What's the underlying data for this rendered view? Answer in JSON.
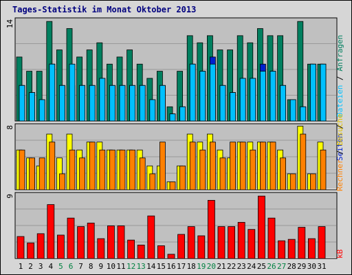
{
  "title": "Tages-Statistik im Monat Oktober 2013",
  "colors": {
    "anfragen": "#007f5f",
    "dateien": "#00c0ff",
    "seiten": "#0020d0",
    "besuche": "#ffff00",
    "rechner": "#ff8000",
    "kb": "#ff0000",
    "weekend": "#008040",
    "weekday": "#000000",
    "panel": "#c0c0c0",
    "grid": "#999999"
  },
  "legend": {
    "anfragen": "Anfragen",
    "dateien": "Dateien",
    "seiten": "Seiten",
    "besuche": "Besuche",
    "rechner": "Rechner",
    "kb": "kB",
    "sep": "/"
  },
  "chart_data": [
    {
      "type": "bar",
      "panel": "top",
      "y_max_label": "14",
      "ylim": [
        0,
        14.5
      ],
      "x": [
        "1",
        "2",
        "3",
        "4",
        "5",
        "6",
        "7",
        "8",
        "9",
        "10",
        "11",
        "12",
        "13",
        "14",
        "15",
        "16",
        "17",
        "18",
        "19",
        "20",
        "21",
        "22",
        "23",
        "24",
        "25",
        "26",
        "27",
        "28",
        "29",
        "30",
        "31"
      ],
      "weekend": [
        5,
        6,
        12,
        13,
        19,
        20,
        26,
        27
      ],
      "series": [
        {
          "name": "Anfragen",
          "values": [
            9,
            7,
            7,
            14,
            10,
            13,
            9,
            10,
            11,
            8,
            9,
            10,
            8,
            6,
            7,
            2,
            7,
            12,
            11,
            12,
            10,
            10,
            12,
            11,
            13,
            12,
            12,
            3,
            14,
            8,
            8
          ]
        },
        {
          "name": "Dateien",
          "values": [
            5,
            4,
            3,
            8,
            5,
            8,
            5,
            5,
            6,
            5,
            5,
            5,
            5,
            3,
            5,
            1,
            2,
            8,
            7,
            8,
            5,
            4,
            6,
            6,
            7,
            7,
            5,
            3,
            2,
            8,
            8
          ]
        },
        {
          "name": "Seiten",
          "values": [
            5,
            4,
            3,
            8,
            5,
            5,
            5,
            5,
            6,
            5,
            5,
            5,
            5,
            3,
            5,
            1,
            2,
            8,
            7,
            9,
            5,
            4,
            6,
            6,
            8,
            7,
            5,
            3,
            2,
            8,
            8
          ]
        }
      ]
    },
    {
      "type": "bar",
      "panel": "middle",
      "y_max_label": "8",
      "ylim": [
        0,
        8.3
      ],
      "series": [
        {
          "name": "Besuche",
          "values": [
            5,
            4,
            3,
            7,
            4,
            7,
            5,
            6,
            6,
            5,
            5,
            5,
            5,
            3,
            3,
            1,
            3,
            7,
            6,
            7,
            5,
            4,
            6,
            6,
            6,
            6,
            5,
            2,
            8,
            2,
            6
          ]
        },
        {
          "name": "Rechner",
          "values": [
            5,
            4,
            4,
            6,
            2,
            5,
            4,
            6,
            5,
            5,
            5,
            5,
            4,
            2,
            6,
            1,
            3,
            6,
            5,
            6,
            4,
            6,
            6,
            5,
            6,
            6,
            4,
            2,
            7,
            2,
            5
          ]
        }
      ]
    },
    {
      "type": "bar",
      "panel": "bottom",
      "y_max_label": "9",
      "ylim": [
        0,
        9.3
      ],
      "series": [
        {
          "name": "kB",
          "values": [
            3.1,
            2.2,
            3.5,
            7.6,
            3.3,
            5.7,
            4.5,
            5.0,
            2.8,
            4.6,
            4.6,
            2.6,
            1.9,
            6.0,
            1.8,
            0.6,
            3.4,
            4.5,
            3.2,
            8.2,
            4.5,
            4.5,
            5.1,
            4.1,
            8.8,
            5.7,
            2.5,
            2.7,
            4.4,
            2.8,
            4.5
          ]
        }
      ]
    }
  ]
}
